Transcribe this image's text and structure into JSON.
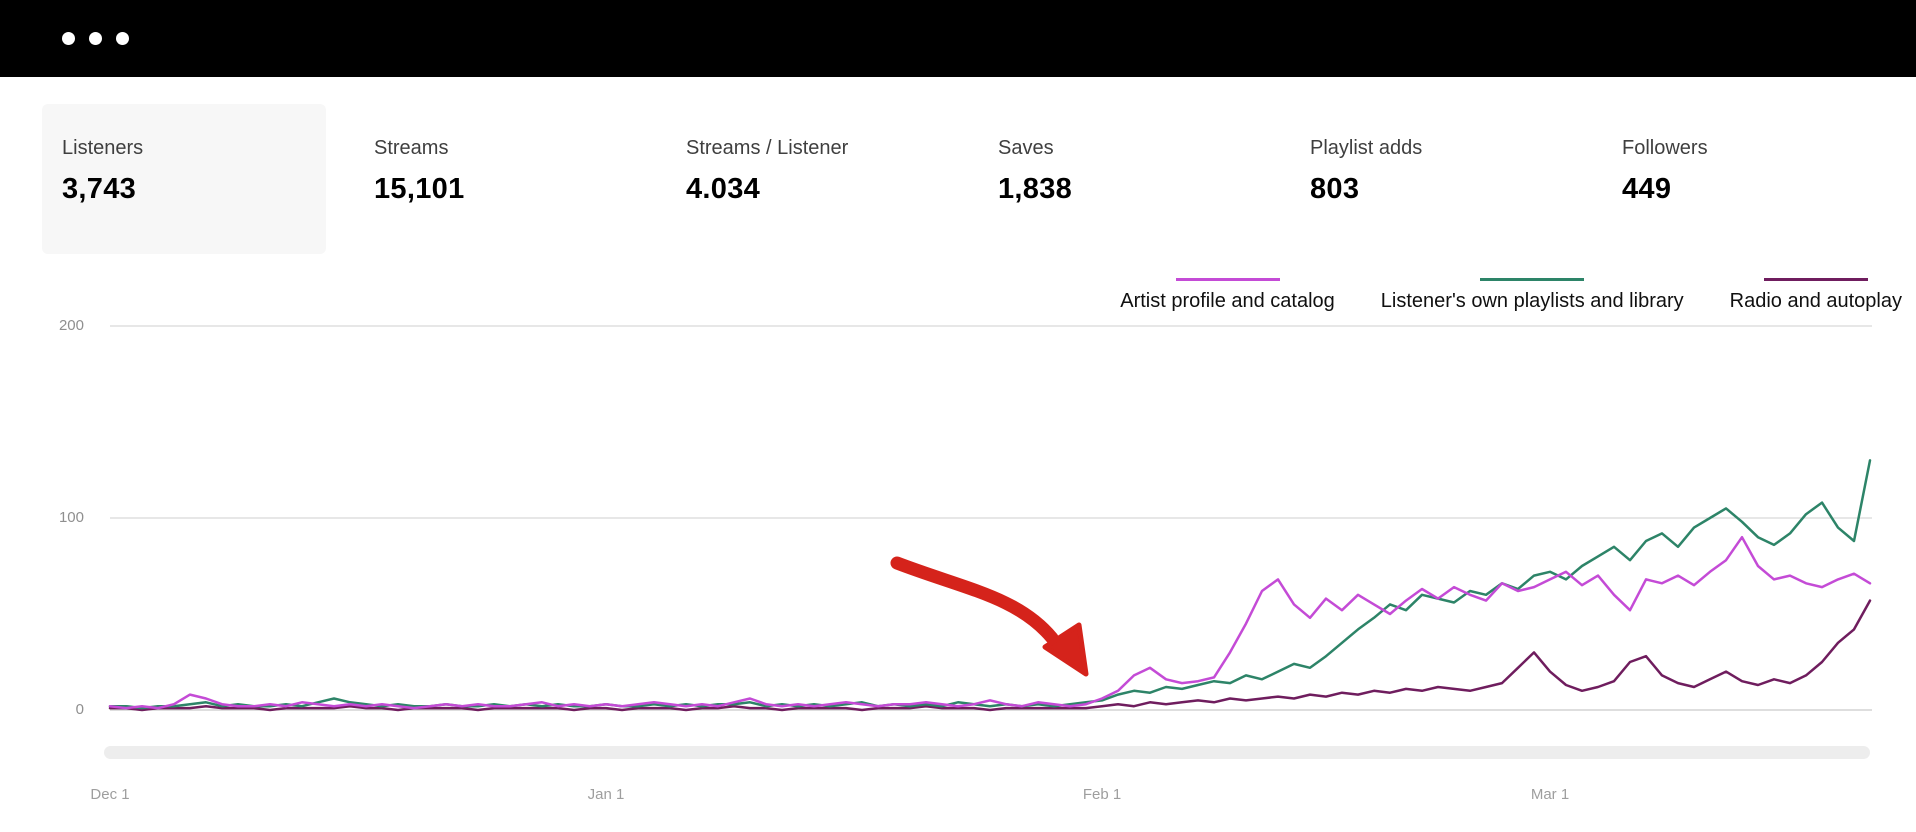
{
  "window": {
    "controls": {
      "count": 3
    }
  },
  "stats": {
    "items": [
      {
        "label": "Listeners",
        "value": "3,743",
        "selected": true
      },
      {
        "label": "Streams",
        "value": "15,101",
        "selected": false
      },
      {
        "label": "Streams / Listener",
        "value": "4.034",
        "selected": false
      },
      {
        "label": "Saves",
        "value": "1,838",
        "selected": false
      },
      {
        "label": "Playlist adds",
        "value": "803",
        "selected": false
      },
      {
        "label": "Followers",
        "value": "449",
        "selected": false
      }
    ]
  },
  "chart_data": {
    "type": "line",
    "title": "",
    "xlabel": "",
    "ylabel": "",
    "ylim": [
      0,
      200
    ],
    "yticks": [
      0,
      100,
      200
    ],
    "xticks": [
      "Dec 1",
      "Jan 1",
      "Feb 1",
      "Mar 1"
    ],
    "xtick_day_index": [
      0,
      31,
      62,
      90
    ],
    "days_total": 111,
    "grid": "horizontal",
    "legend_position": "top-right",
    "series": [
      {
        "name": "Artist profile and catalog",
        "color": "#c44bd6",
        "values": [
          2,
          1,
          2,
          1,
          3,
          8,
          6,
          3,
          2,
          2,
          3,
          2,
          4,
          3,
          2,
          3,
          2,
          3,
          2,
          1,
          2,
          3,
          2,
          3,
          2,
          2,
          3,
          4,
          2,
          3,
          2,
          3,
          2,
          3,
          4,
          3,
          2,
          3,
          2,
          4,
          6,
          3,
          2,
          3,
          2,
          3,
          4,
          3,
          2,
          3,
          3,
          4,
          3,
          2,
          3,
          5,
          3,
          2,
          4,
          3,
          2,
          3,
          6,
          10,
          18,
          22,
          16,
          14,
          15,
          17,
          30,
          45,
          62,
          68,
          55,
          48,
          58,
          52,
          60,
          55,
          50,
          57,
          63,
          58,
          64,
          60,
          57,
          66,
          62,
          64,
          68,
          72,
          65,
          70,
          60,
          52,
          68,
          66,
          70,
          65,
          72,
          78,
          90,
          75,
          68,
          70,
          66,
          64,
          68,
          71,
          66
        ]
      },
      {
        "name": "Listener's own playlists and library",
        "color": "#2d8468",
        "values": [
          2,
          2,
          1,
          2,
          2,
          3,
          4,
          2,
          3,
          2,
          2,
          3,
          2,
          4,
          6,
          4,
          3,
          2,
          3,
          2,
          2,
          3,
          2,
          2,
          3,
          2,
          3,
          2,
          3,
          2,
          2,
          3,
          2,
          2,
          3,
          2,
          3,
          2,
          3,
          3,
          4,
          2,
          3,
          2,
          3,
          2,
          3,
          4,
          2,
          3,
          2,
          3,
          2,
          4,
          3,
          2,
          3,
          2,
          3,
          2,
          3,
          4,
          5,
          8,
          10,
          9,
          12,
          11,
          13,
          15,
          14,
          18,
          16,
          20,
          24,
          22,
          28,
          35,
          42,
          48,
          55,
          52,
          60,
          58,
          56,
          62,
          60,
          66,
          63,
          70,
          72,
          68,
          75,
          80,
          85,
          78,
          88,
          92,
          85,
          95,
          100,
          105,
          98,
          90,
          86,
          92,
          102,
          108,
          95,
          88,
          130
        ]
      },
      {
        "name": "Radio and autoplay",
        "color": "#6f1d5e",
        "values": [
          1,
          1,
          0,
          1,
          1,
          1,
          2,
          1,
          1,
          1,
          0,
          1,
          1,
          1,
          1,
          2,
          1,
          1,
          0,
          1,
          1,
          1,
          1,
          0,
          1,
          1,
          1,
          1,
          1,
          0,
          1,
          1,
          0,
          1,
          1,
          1,
          0,
          1,
          1,
          2,
          1,
          1,
          0,
          1,
          1,
          1,
          1,
          0,
          1,
          1,
          1,
          2,
          1,
          1,
          1,
          0,
          1,
          1,
          1,
          1,
          1,
          1,
          2,
          3,
          2,
          4,
          3,
          4,
          5,
          4,
          6,
          5,
          6,
          7,
          6,
          8,
          7,
          9,
          8,
          10,
          9,
          11,
          10,
          12,
          11,
          10,
          12,
          14,
          22,
          30,
          20,
          13,
          10,
          12,
          15,
          25,
          28,
          18,
          14,
          12,
          16,
          20,
          15,
          13,
          16,
          14,
          18,
          25,
          35,
          42,
          57
        ]
      }
    ],
    "annotation": {
      "shape": "hand-drawn-arrow",
      "color": "#d5231b",
      "points_at": "Feb 1 inflection"
    }
  }
}
